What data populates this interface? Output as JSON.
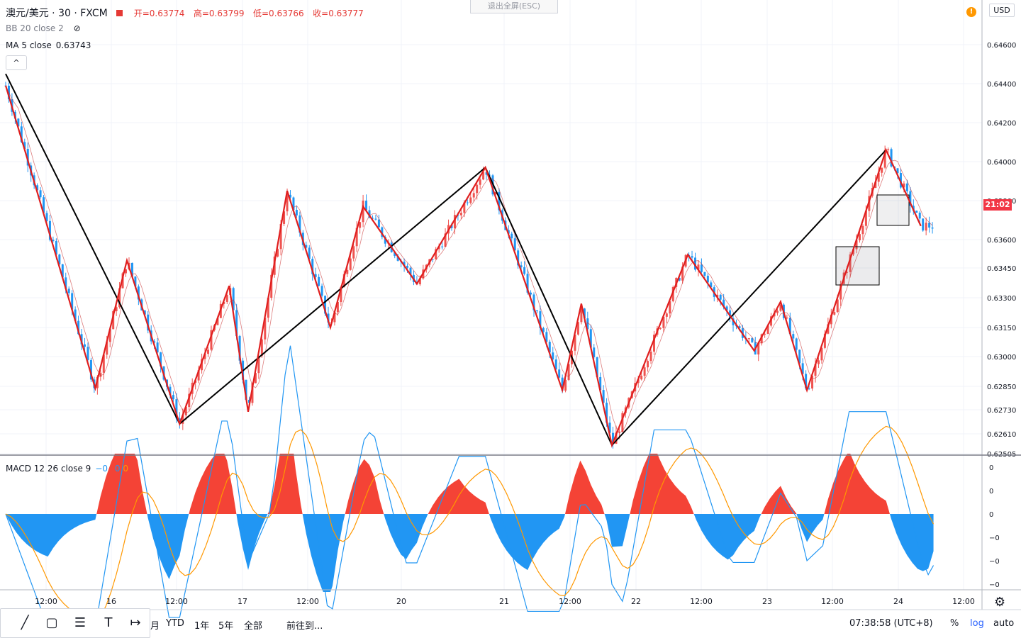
{
  "header": {
    "symbol": "澳元/美元 · 30 · FXCM",
    "ohlc": {
      "open": "开=0.63774",
      "high": "高=0.63799",
      "low": "低=0.63766",
      "close": "收=0.63777"
    },
    "bb_label": "BB 20 close 2",
    "ma_label": "MA 5 close",
    "ma_value": "0.63743",
    "collapse_icon": "^",
    "exit_fullscreen": "退出全屏(ESC)",
    "currency": "USD",
    "alert_icon": "!"
  },
  "price_axis": {
    "labels": [
      "0.64600",
      "0.64400",
      "0.64200",
      "0.64000",
      "0.63800",
      "0.63600",
      "0.63450",
      "0.63300",
      "0.63150",
      "0.63000",
      "0.62850",
      "0.62730",
      "0.62610",
      "0.62505"
    ],
    "current_tag": "21:02"
  },
  "time_axis": {
    "labels": [
      "12:00",
      "16",
      "12:00",
      "17",
      "12:00",
      "20",
      "21",
      "12:00",
      "22",
      "12:00",
      "23",
      "12:00",
      "24",
      "12:00"
    ]
  },
  "macd": {
    "label": "MACD 12 26 close 9",
    "values": [
      "−0",
      "0",
      "0"
    ],
    "axis_labels": [
      "0",
      "0",
      "0",
      "−0",
      "−0",
      "−0"
    ]
  },
  "bottom_bar": {
    "range_items": [
      "月",
      "YTD",
      "1年",
      "5年",
      "全部"
    ],
    "goto": "前往到...",
    "clock": "07:38:58 (UTC+8)",
    "percent": "%",
    "log": "log",
    "auto": "auto"
  },
  "drawing_tools": [
    "trend-line-icon",
    "rectangle-icon",
    "fib-lines-icon",
    "text-tool-icon",
    "measure-icon"
  ],
  "chart_data": {
    "type": "candlestick",
    "instrument": "澳元/美元 · 30 · FXCM",
    "ylim": [
      0.62505,
      0.646
    ],
    "zigzag_major": [
      {
        "t": 0,
        "p": 0.6445
      },
      {
        "t": 16.5,
        "p": 0.6266
      },
      {
        "t": 45.5,
        "p": 0.6397
      },
      {
        "t": 57.5,
        "p": 0.6255
      },
      {
        "t": 83.5,
        "p": 0.6406
      }
    ],
    "zigzag_minor": [
      {
        "t": 0,
        "p": 0.6439
      },
      {
        "t": 8.5,
        "p": 0.6284
      },
      {
        "t": 11.5,
        "p": 0.6349
      },
      {
        "t": 16.5,
        "p": 0.6266
      },
      {
        "t": 21.2,
        "p": 0.6336
      },
      {
        "t": 23,
        "p": 0.6272
      },
      {
        "t": 26.7,
        "p": 0.6385
      },
      {
        "t": 30.8,
        "p": 0.6315
      },
      {
        "t": 33.9,
        "p": 0.6377
      },
      {
        "t": 39,
        "p": 0.6337
      },
      {
        "t": 45.5,
        "p": 0.6397
      },
      {
        "t": 52.8,
        "p": 0.6283
      },
      {
        "t": 54.6,
        "p": 0.6327
      },
      {
        "t": 57.5,
        "p": 0.6255
      },
      {
        "t": 64.7,
        "p": 0.6352
      },
      {
        "t": 71,
        "p": 0.6303
      },
      {
        "t": 73.5,
        "p": 0.6328
      },
      {
        "t": 76,
        "p": 0.6283
      },
      {
        "t": 83.5,
        "p": 0.6406
      },
      {
        "t": 86.8,
        "p": 0.6367
      }
    ],
    "last_close": 0.63777,
    "ma5_last": 0.63743
  },
  "colors": {
    "up": "#ef5350",
    "down": "#2196f3",
    "zigzag_major": "#000000",
    "zigzag_minor": "#e01e1e",
    "hist_pos": "#f44336",
    "hist_neg": "#2196f3",
    "macd_line": "#2196f3",
    "signal_line": "#ff9800"
  }
}
